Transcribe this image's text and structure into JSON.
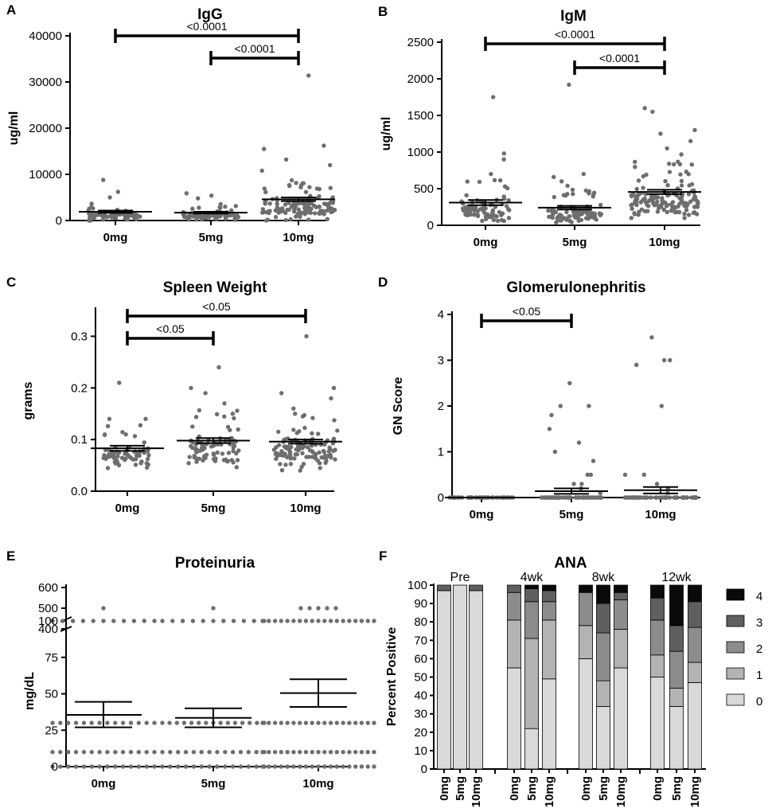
{
  "chart_data": [
    {
      "id": "A",
      "panel_label": "A",
      "type": "scatter",
      "title": "IgG",
      "ylabel": "ug/ml",
      "categories": [
        "0mg",
        "5mg",
        "10mg"
      ],
      "ylim": [
        0,
        40000
      ],
      "yticks": [
        "0",
        "10000",
        "20000",
        "30000",
        "40000"
      ],
      "ytick_values": [
        0,
        10000,
        20000,
        30000,
        40000
      ],
      "means": [
        1900,
        1700,
        4600
      ],
      "sem": [
        250,
        200,
        400
      ],
      "max_values": [
        8800,
        5900,
        31400
      ],
      "comparisons": [
        {
          "from": "0mg",
          "to": "10mg",
          "label": "<0.0001"
        },
        {
          "from": "5mg",
          "to": "10mg",
          "label": "<0.0001"
        }
      ]
    },
    {
      "id": "B",
      "panel_label": "B",
      "type": "scatter",
      "title": "IgM",
      "ylabel": "ug/ml",
      "categories": [
        "0mg",
        "5mg",
        "10mg"
      ],
      "ylim": [
        0,
        2500
      ],
      "yticks": [
        "0",
        "500",
        "1000",
        "1500",
        "2000",
        "2500"
      ],
      "ytick_values": [
        0,
        500,
        1000,
        1500,
        2000,
        2500
      ],
      "means": [
        310,
        240,
        455
      ],
      "sem": [
        35,
        25,
        30
      ],
      "max_values": [
        1750,
        1920,
        1600
      ],
      "comparisons": [
        {
          "from": "0mg",
          "to": "10mg",
          "label": "<0.0001"
        },
        {
          "from": "5mg",
          "to": "10mg",
          "label": "<0.0001"
        }
      ]
    },
    {
      "id": "C",
      "panel_label": "C",
      "type": "scatter",
      "title": "Spleen Weight",
      "ylabel": "grams",
      "categories": [
        "0mg",
        "5mg",
        "10mg"
      ],
      "ylim": [
        0,
        0.35
      ],
      "yticks": [
        "0.0",
        "0.1",
        "0.2",
        "0.3"
      ],
      "ytick_values": [
        0,
        0.1,
        0.2,
        0.3
      ],
      "means": [
        0.083,
        0.098,
        0.096
      ],
      "sem": [
        0.005,
        0.005,
        0.004
      ],
      "max_values": [
        0.21,
        0.24,
        0.3
      ],
      "comparisons": [
        {
          "from": "0mg",
          "to": "10mg",
          "label": "<0.05"
        },
        {
          "from": "0mg",
          "to": "5mg",
          "label": "<0.05"
        }
      ]
    },
    {
      "id": "D",
      "panel_label": "D",
      "type": "scatter",
      "title": "Glomerulonephritis",
      "ylabel": "GN Score",
      "categories": [
        "0mg",
        "5mg",
        "10mg"
      ],
      "ylim": [
        0,
        4
      ],
      "yticks": [
        "0",
        "1",
        "2",
        "3",
        "4"
      ],
      "ytick_values": [
        0,
        1,
        2,
        3,
        4
      ],
      "means": [
        0.0,
        0.14,
        0.16
      ],
      "sem": [
        0.0,
        0.06,
        0.07
      ],
      "max_values": [
        0.0,
        2.5,
        3.5
      ],
      "comparisons": [
        {
          "from": "0mg",
          "to": "5mg",
          "label": "<0.05"
        }
      ]
    },
    {
      "id": "E",
      "panel_label": "E",
      "type": "scatter",
      "title": "Proteinuria",
      "ylabel": "mg/dL",
      "categories": [
        "0mg",
        "5mg",
        "10mg"
      ],
      "ylim_lower": [
        0,
        100
      ],
      "ylim_upper": [
        400,
        600
      ],
      "yticks_lower": [
        "0",
        "25",
        "50",
        "75",
        "100"
      ],
      "ytick_values_lower": [
        0,
        25,
        50,
        75,
        100
      ],
      "yticks_upper": [
        "400",
        "500",
        "600"
      ],
      "ytick_values_upper": [
        400,
        500,
        600
      ],
      "means": [
        35.5,
        33.5,
        50.5
      ],
      "error_low": [
        27,
        27,
        41
      ],
      "error_high": [
        44.5,
        40,
        60
      ],
      "counts": {
        "0mg": {
          "0": 14,
          "10": 14,
          "30": 14,
          "100": 11,
          "500": 1
        },
        "5mg": {
          "0": 14,
          "10": 14,
          "30": 15,
          "100": 11,
          "500": 1
        },
        "10mg": {
          "0": 19,
          "10": 19,
          "30": 19,
          "100": 19,
          "500": 5
        }
      }
    },
    {
      "id": "F",
      "panel_label": "F",
      "type": "bar",
      "title": "ANA",
      "ylabel": "Percent Positive",
      "ylim": [
        0,
        100
      ],
      "yticks": [
        "0",
        "10",
        "20",
        "30",
        "40",
        "50",
        "60",
        "70",
        "80",
        "90",
        "100"
      ],
      "ytick_values": [
        0,
        10,
        20,
        30,
        40,
        50,
        60,
        70,
        80,
        90,
        100
      ],
      "groups": [
        "Pre",
        "4wk",
        "8wk",
        "12wk"
      ],
      "doses": [
        "0mg",
        "5mg",
        "10mg"
      ],
      "score_levels": [
        "0",
        "1",
        "2",
        "3",
        "4"
      ],
      "legend": [
        "4",
        "3",
        "2",
        "1",
        "0"
      ],
      "colors": {
        "0": "#d9d9d9",
        "1": "#b3b3b3",
        "2": "#8c8c8c",
        "3": "#5f5f5f",
        "4": "#0a0a0a"
      },
      "series": [
        {
          "name": "0",
          "values": [
            97,
            100,
            97,
            55,
            22,
            49,
            60,
            34,
            55,
            50,
            34,
            47
          ]
        },
        {
          "name": "1",
          "values": [
            0,
            0,
            0,
            26,
            49,
            32,
            18,
            14,
            21,
            12,
            10,
            11
          ]
        },
        {
          "name": "2",
          "values": [
            0,
            0,
            0,
            15,
            20,
            10,
            18,
            26,
            16,
            19,
            20,
            19
          ]
        },
        {
          "name": "3",
          "values": [
            3,
            0,
            3,
            4,
            7,
            6,
            0,
            16,
            4,
            12,
            14,
            14
          ]
        },
        {
          "name": "4",
          "values": [
            0,
            0,
            0,
            0,
            2,
            3,
            4,
            10,
            4,
            7,
            22,
            9
          ]
        }
      ]
    }
  ]
}
